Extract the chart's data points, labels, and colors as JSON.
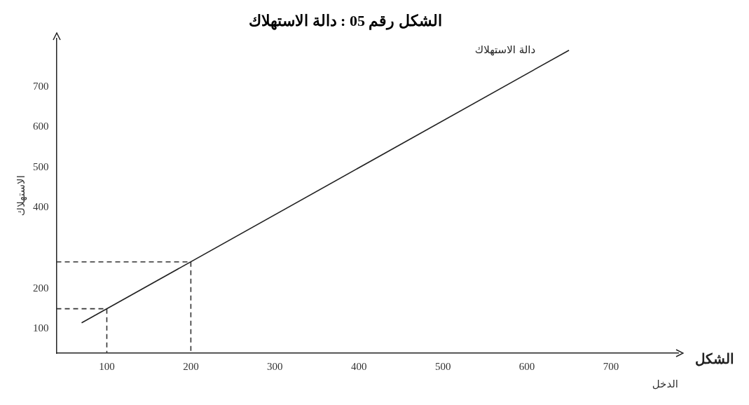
{
  "chart_data": {
    "type": "line",
    "title": "الشكل رقم 05 : دالة الاستهلاك",
    "xlabel": "الدخل",
    "ylabel": "الاستهلاك",
    "x": [
      70,
      650
    ],
    "series": [
      {
        "color": "#222222",
        "values": [
          115,
          790
        ]
      },
      {
        "color": "#333333",
        "line_style": "dashed",
        "x": [
          40,
          100,
          100
        ],
        "values": [
          150,
          150,
          40
        ]
      },
      {
        "color": "#333333",
        "line_style": "dashed",
        "x": [
          40,
          200,
          200
        ],
        "values": [
          266,
          266,
          40
        ]
      }
    ],
    "xlim": [
      40,
      780
    ],
    "ylim": [
      40,
      820
    ],
    "xticks": [
      100,
      200,
      300,
      400,
      500,
      600,
      700
    ],
    "yticks": [
      100,
      200,
      400,
      500,
      600,
      700
    ],
    "grid": false,
    "legend": false,
    "marker": "none",
    "line_style": "solid",
    "annotations": [
      "دالة الاستهلاك",
      "الشكل"
    ]
  }
}
